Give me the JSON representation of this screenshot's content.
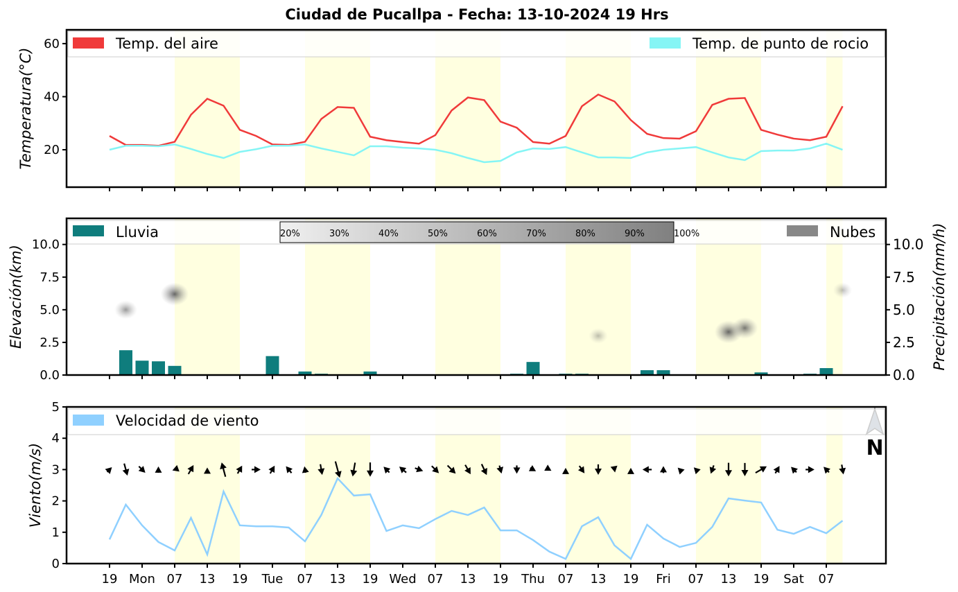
{
  "title": "Ciudad de Pucallpa   -   Fecha: 13-10-2024 19 Hrs",
  "colors": {
    "air": "#f03a3a",
    "dew": "#85f5f5",
    "rain": "#0f7d7d",
    "wind": "#8fd0ff",
    "daylight": "#ffffe0",
    "clouds": "#888888"
  },
  "x_tick_labels": [
    "19",
    "Mon",
    "07",
    "13",
    "19",
    "Tue",
    "07",
    "13",
    "19",
    "Wed",
    "07",
    "13",
    "19",
    "Thu",
    "07",
    "13",
    "19",
    "Fri",
    "07",
    "13",
    "19",
    "Sat",
    "07"
  ],
  "chart_data": [
    {
      "type": "line",
      "ylabel": "Temperatura(°C)",
      "ylim": [
        5.9,
        65.2
      ],
      "yticks": [
        "20",
        "40",
        "60"
      ],
      "legend": "top",
      "x": [
        "2024-10-13 19:00",
        "2024-10-13 22:00",
        "2024-10-14 01:00",
        "2024-10-14 04:00",
        "2024-10-14 07:00",
        "2024-10-14 10:00",
        "2024-10-14 13:00",
        "2024-10-14 16:00",
        "2024-10-14 19:00",
        "2024-10-14 22:00",
        "2024-10-15 01:00",
        "2024-10-15 04:00",
        "2024-10-15 07:00",
        "2024-10-15 10:00",
        "2024-10-15 13:00",
        "2024-10-15 16:00",
        "2024-10-15 19:00",
        "2024-10-15 22:00",
        "2024-10-16 01:00",
        "2024-10-16 04:00",
        "2024-10-16 07:00",
        "2024-10-16 10:00",
        "2024-10-16 13:00",
        "2024-10-16 16:00",
        "2024-10-16 19:00",
        "2024-10-16 22:00",
        "2024-10-17 01:00",
        "2024-10-17 04:00",
        "2024-10-17 07:00",
        "2024-10-17 10:00",
        "2024-10-17 13:00",
        "2024-10-17 16:00",
        "2024-10-17 19:00",
        "2024-10-17 22:00",
        "2024-10-18 01:00",
        "2024-10-18 04:00",
        "2024-10-18 07:00",
        "2024-10-18 10:00",
        "2024-10-18 13:00",
        "2024-10-18 16:00",
        "2024-10-18 19:00",
        "2024-10-18 22:00",
        "2024-10-19 01:00",
        "2024-10-19 04:00",
        "2024-10-19 07:00",
        "2024-10-19 10:00"
      ],
      "series": [
        {
          "name": "Temp. del aire",
          "values": [
            25.2,
            21.8,
            21.8,
            21.5,
            23,
            33.2,
            39.2,
            36.6,
            27.5,
            25.2,
            22,
            21.8,
            23,
            31.6,
            36.1,
            35.8,
            24.9,
            23.6,
            22.9,
            22.3,
            25.5,
            34.8,
            39.7,
            38.7,
            30.6,
            28.3,
            22.9,
            22.3,
            25.2,
            36.4,
            40.8,
            38.2,
            31.2,
            26,
            24.4,
            24.2,
            27,
            36.9,
            39.2,
            39.5,
            27.5,
            25.7,
            24.2,
            23.6,
            24.9,
            36.4
          ]
        },
        {
          "name": "Temp. de punto de rocio",
          "values": [
            20,
            21.5,
            21.5,
            21.3,
            22,
            20.3,
            18.4,
            16.9,
            19.2,
            20.2,
            21.5,
            21.5,
            22,
            20.5,
            19.2,
            17.9,
            21.3,
            21.3,
            20.8,
            20.5,
            20,
            18.7,
            16.9,
            15.3,
            15.8,
            19,
            20.5,
            20.3,
            21,
            19,
            17.1,
            17.1,
            16.9,
            19,
            20,
            20.5,
            21,
            19,
            17.1,
            16.1,
            19.5,
            19.7,
            19.7,
            20.5,
            22.3,
            20
          ]
        }
      ]
    },
    {
      "type": "bar",
      "ylabel": "Elevación(km)",
      "ylabel_right": "Precipitación(mm/h)",
      "ylim": [
        0,
        12.0
      ],
      "yticks": [
        "0.0",
        "2.5",
        "5.0",
        "7.5",
        "10.0"
      ],
      "series": [
        {
          "name": "Lluvia",
          "values": [
            0,
            1.9,
            1.1,
            1.05,
            0.7,
            0,
            0,
            0,
            0,
            0.05,
            1.45,
            0,
            0.27,
            0.1,
            0,
            0,
            0.27,
            0.05,
            0,
            0,
            0,
            0,
            0,
            0,
            0,
            0.1,
            1.0,
            0.05,
            0.1,
            0.1,
            0,
            0,
            0,
            0.37,
            0.37,
            0.05,
            0,
            0,
            0,
            0,
            0.2,
            0,
            0,
            0.1,
            0.53,
            0
          ]
        }
      ],
      "clouds": {
        "name": "Nubes",
        "colorbar_labels": [
          "20%",
          "30%",
          "40%",
          "50%",
          "60%",
          "70%",
          "80%",
          "90%",
          "100%"
        ],
        "cells": [
          {
            "x": "2024-10-13 22:00",
            "elevation_km": 5.0,
            "cover_pct": 40
          },
          {
            "x": "2024-10-14 07:00",
            "elevation_km": 6.2,
            "cover_pct": 70
          },
          {
            "x": "2024-10-17 13:00",
            "elevation_km": 3.0,
            "cover_pct": 20
          },
          {
            "x": "2024-10-18 13:00",
            "elevation_km": 3.3,
            "cover_pct": 70
          },
          {
            "x": "2024-10-18 16:00",
            "elevation_km": 3.6,
            "cover_pct": 60
          },
          {
            "x": "2024-10-19 10:00",
            "elevation_km": 6.5,
            "cover_pct": 20
          }
        ]
      }
    },
    {
      "type": "line",
      "ylabel": "Viento(m/s)",
      "ylim": [
        0,
        5
      ],
      "yticks": [
        "0",
        "1",
        "2",
        "3",
        "4",
        "5"
      ],
      "north_label": "N",
      "series": [
        {
          "name": "Velocidad de viento",
          "values": [
            0.77,
            1.88,
            1.22,
            0.69,
            0.42,
            1.46,
            0.29,
            2.3,
            1.22,
            1.19,
            1.19,
            1.15,
            0.71,
            1.55,
            2.72,
            2.17,
            2.21,
            1.04,
            1.22,
            1.13,
            1.42,
            1.68,
            1.55,
            1.79,
            1.06,
            1.06,
            0.75,
            0.38,
            0.15,
            1.19,
            1.48,
            0.58,
            0.15,
            1.24,
            0.8,
            0.53,
            0.66,
            1.17,
            2.08,
            2.01,
            1.95,
            1.08,
            0.95,
            1.17,
            0.97,
            1.37
          ]
        }
      ],
      "arrow_direction_deg": [
        45,
        165,
        135,
        0,
        250,
        30,
        0,
        345,
        30,
        90,
        30,
        320,
        350,
        170,
        165,
        190,
        180,
        315,
        310,
        110,
        135,
        135,
        150,
        155,
        165,
        180,
        120,
        120,
        0,
        145,
        180,
        170,
        0,
        270,
        0,
        315,
        315,
        200,
        180,
        180,
        60,
        30,
        315,
        90,
        315,
        170
      ]
    }
  ]
}
